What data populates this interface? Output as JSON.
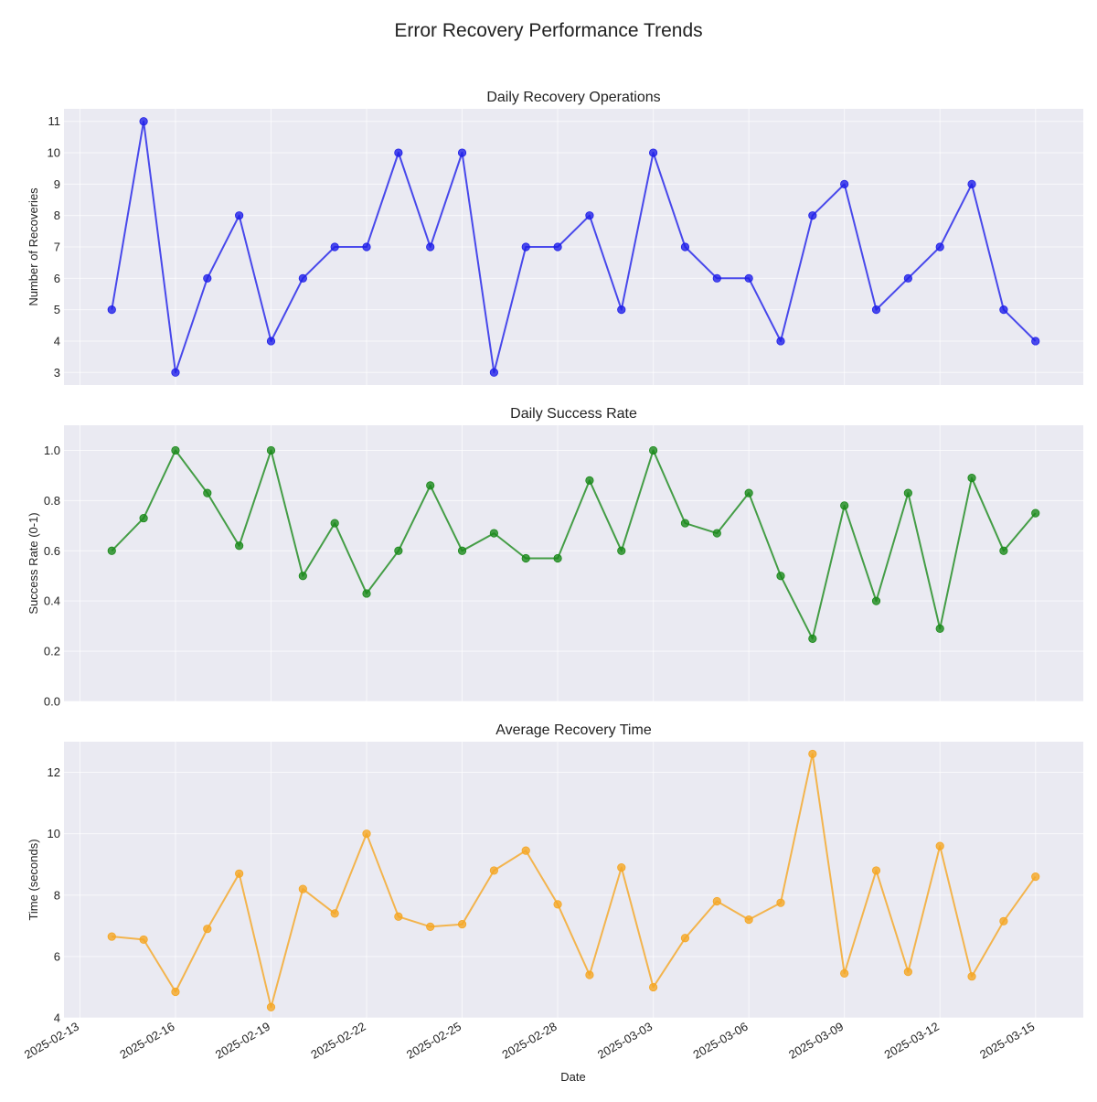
{
  "figure": {
    "title": "Error Recovery Performance Trends",
    "xlabel": "Date"
  },
  "chart_data": [
    {
      "type": "line",
      "title": "Daily Recovery Operations",
      "ylabel": "Number of Recoveries",
      "color": "#1f1fe8",
      "ylim": [
        2.6,
        11.4
      ],
      "yticks": [
        3,
        4,
        5,
        6,
        7,
        8,
        9,
        10,
        11
      ],
      "ytick_labels": [
        "3",
        "4",
        "5",
        "6",
        "7",
        "8",
        "9",
        "10",
        "11"
      ],
      "xtick_labels": [
        "2025-02-13",
        "2025-02-16",
        "2025-02-19",
        "2025-02-22",
        "2025-02-25",
        "2025-02-28",
        "2025-03-03",
        "2025-03-06",
        "2025-03-09",
        "2025-03-12",
        "2025-03-15"
      ],
      "show_xtick_labels": false,
      "x": [
        "2025-02-14",
        "2025-02-15",
        "2025-02-16",
        "2025-02-17",
        "2025-02-18",
        "2025-02-19",
        "2025-02-20",
        "2025-02-21",
        "2025-02-22",
        "2025-02-23",
        "2025-02-24",
        "2025-02-25",
        "2025-02-26",
        "2025-02-27",
        "2025-02-28",
        "2025-03-01",
        "2025-03-02",
        "2025-03-03",
        "2025-03-04",
        "2025-03-05",
        "2025-03-06",
        "2025-03-07",
        "2025-03-08",
        "2025-03-09",
        "2025-03-10",
        "2025-03-11",
        "2025-03-12",
        "2025-03-13",
        "2025-03-14",
        "2025-03-15"
      ],
      "values": [
        5,
        11,
        3,
        6,
        8,
        4,
        6,
        7,
        7,
        10,
        7,
        10,
        3,
        7,
        7,
        8,
        5,
        10,
        7,
        6,
        6,
        4,
        8,
        9,
        5,
        6,
        7,
        9,
        5,
        4
      ]
    },
    {
      "type": "line",
      "title": "Daily Success Rate",
      "ylabel": "Success Rate (0-1)",
      "color": "#1a8a1a",
      "ylim": [
        0.0,
        1.1
      ],
      "yticks": [
        0.0,
        0.2,
        0.4,
        0.6,
        0.8,
        1.0
      ],
      "ytick_labels": [
        "0.0",
        "0.2",
        "0.4",
        "0.6",
        "0.8",
        "1.0"
      ],
      "xtick_labels": [
        "2025-02-13",
        "2025-02-16",
        "2025-02-19",
        "2025-02-22",
        "2025-02-25",
        "2025-02-28",
        "2025-03-03",
        "2025-03-06",
        "2025-03-09",
        "2025-03-12",
        "2025-03-15"
      ],
      "show_xtick_labels": false,
      "x": [
        "2025-02-14",
        "2025-02-15",
        "2025-02-16",
        "2025-02-17",
        "2025-02-18",
        "2025-02-19",
        "2025-02-20",
        "2025-02-21",
        "2025-02-22",
        "2025-02-23",
        "2025-02-24",
        "2025-02-25",
        "2025-02-26",
        "2025-02-27",
        "2025-02-28",
        "2025-03-01",
        "2025-03-02",
        "2025-03-03",
        "2025-03-04",
        "2025-03-05",
        "2025-03-06",
        "2025-03-07",
        "2025-03-08",
        "2025-03-09",
        "2025-03-10",
        "2025-03-11",
        "2025-03-12",
        "2025-03-13",
        "2025-03-14",
        "2025-03-15"
      ],
      "values": [
        0.6,
        0.73,
        1.0,
        0.83,
        0.62,
        1.0,
        0.5,
        0.71,
        0.43,
        0.6,
        0.86,
        0.6,
        0.67,
        0.57,
        0.57,
        0.88,
        0.6,
        1.0,
        0.71,
        0.67,
        0.83,
        0.5,
        0.25,
        0.78,
        0.4,
        0.83,
        0.29,
        0.89,
        0.6,
        0.75
      ]
    },
    {
      "type": "line",
      "title": "Average Recovery Time",
      "ylabel": "Time (seconds)",
      "color": "#f5a623",
      "ylim": [
        4.0,
        13.0
      ],
      "yticks": [
        4,
        6,
        8,
        10,
        12
      ],
      "ytick_labels": [
        "4",
        "6",
        "8",
        "10",
        "12"
      ],
      "xtick_labels": [
        "2025-02-13",
        "2025-02-16",
        "2025-02-19",
        "2025-02-22",
        "2025-02-25",
        "2025-02-28",
        "2025-03-03",
        "2025-03-06",
        "2025-03-09",
        "2025-03-12",
        "2025-03-15"
      ],
      "show_xtick_labels": true,
      "x": [
        "2025-02-14",
        "2025-02-15",
        "2025-02-16",
        "2025-02-17",
        "2025-02-18",
        "2025-02-19",
        "2025-02-20",
        "2025-02-21",
        "2025-02-22",
        "2025-02-23",
        "2025-02-24",
        "2025-02-25",
        "2025-02-26",
        "2025-02-27",
        "2025-02-28",
        "2025-03-01",
        "2025-03-02",
        "2025-03-03",
        "2025-03-04",
        "2025-03-05",
        "2025-03-06",
        "2025-03-07",
        "2025-03-08",
        "2025-03-09",
        "2025-03-10",
        "2025-03-11",
        "2025-03-12",
        "2025-03-13",
        "2025-03-14",
        "2025-03-15"
      ],
      "values": [
        6.65,
        6.55,
        4.85,
        6.9,
        8.7,
        4.35,
        8.2,
        7.4,
        10.0,
        7.3,
        6.97,
        7.05,
        8.8,
        9.45,
        7.7,
        5.4,
        8.9,
        5.0,
        6.6,
        7.8,
        7.2,
        7.75,
        12.6,
        5.45,
        8.8,
        5.5,
        9.6,
        5.35,
        7.15,
        8.6
      ]
    }
  ]
}
